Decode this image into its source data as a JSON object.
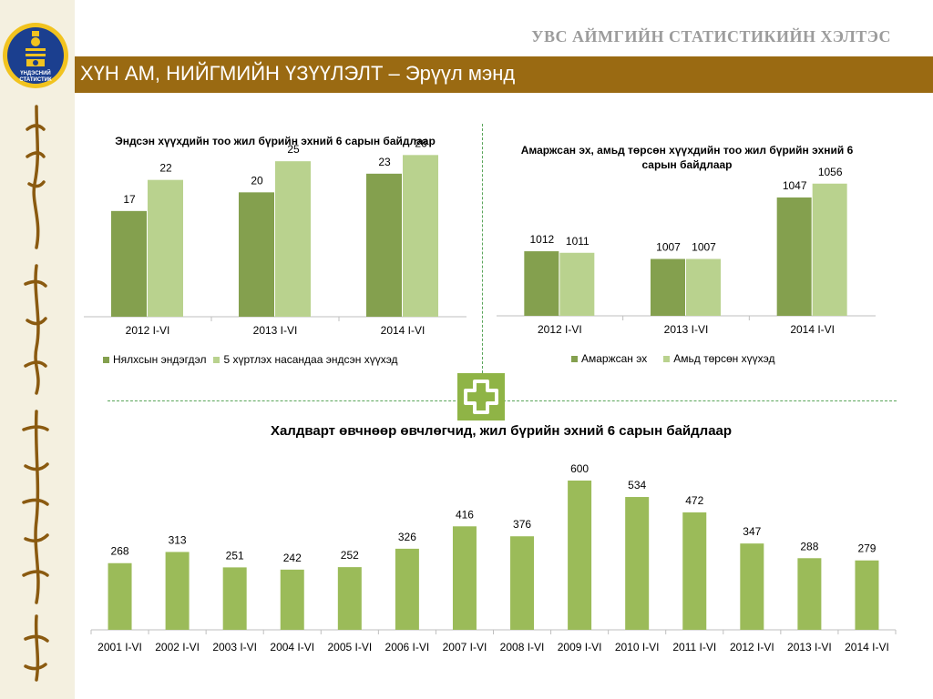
{
  "header": {
    "org_title": "УВС АЙМГИЙН СТАТИСТИКИЙН ХЭЛТЭС",
    "banner": "ХҮН АМ, НИЙГМИЙН ҮЗҮҮЛЭЛТ – Эрүүл мэнд",
    "logo_text": "ҮНДЭСНИЙ СТАТИСТИК"
  },
  "colors": {
    "banner": "#9a6a12",
    "dark_green": "#84a04e",
    "light_green": "#b9d28e",
    "bar_green": "#9bbb59",
    "plus": "#8fb446"
  },
  "chart_data": [
    {
      "type": "bar",
      "title": "Эндсэн хүүхдийн тоо жил бүрийн эхний 6 сарын байдлаар",
      "categories": [
        "2012 I-VI",
        "2013 I-VI",
        "2014 I-VI"
      ],
      "series": [
        {
          "name": "Нялхсын эндэгдэл",
          "values": [
            17,
            20,
            23
          ]
        },
        {
          "name": "5 хүртлэх насандаа эндсэн хүүхэд",
          "values": [
            22,
            25,
            26
          ]
        }
      ],
      "ylim": [
        0,
        30
      ],
      "legend": "bottom"
    },
    {
      "type": "bar",
      "title": "Амаржсан эх, амьд төрсөн хүүхдийн тоо жил бүрийн эхний 6 сарын байдлаар",
      "categories": [
        "2012 I-VI",
        "2013 I-VI",
        "2014 I-VI"
      ],
      "series": [
        {
          "name": "Амаржсан эх",
          "values": [
            1012,
            1007,
            1047
          ]
        },
        {
          "name": "Амьд төрсөн хүүхэд",
          "values": [
            1011,
            1007,
            1056
          ]
        }
      ],
      "ylim": [
        970,
        1060
      ],
      "legend": "bottom"
    },
    {
      "type": "bar",
      "title": "Халдварт өвчнөөр өвчлөгчид, жил бүрийн эхний 6 сарын байдлаар",
      "categories": [
        "2001 I-VI",
        "2002 I-VI",
        "2003 I-VI",
        "2004 I-VI",
        "2005 I-VI",
        "2006 I-VI",
        "2007 I-VI",
        "2008 I-VI",
        "2009 I-VI",
        "2010 I-VI",
        "2011 I-VI",
        "2012 I-VI",
        "2013 I-VI",
        "2014 I-VI"
      ],
      "values": [
        268,
        313,
        251,
        242,
        252,
        326,
        416,
        376,
        600,
        534,
        472,
        347,
        288,
        279
      ],
      "ylim": [
        0,
        650
      ]
    }
  ]
}
